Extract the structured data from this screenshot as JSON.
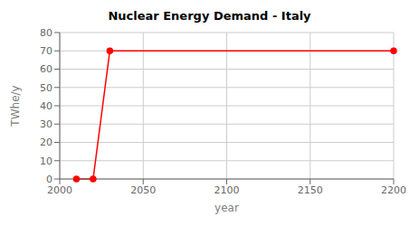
{
  "chart_data": {
    "type": "line",
    "title": "Nuclear Energy Demand - Italy",
    "xlabel": "year",
    "ylabel": "TWhe/y",
    "x": [
      2010,
      2020,
      2030,
      2200
    ],
    "series": [
      {
        "color": "#ff0000",
        "marker": "circle",
        "values": [
          0,
          0,
          70,
          70
        ]
      }
    ],
    "xlim": [
      2000,
      2200
    ],
    "ylim": [
      0,
      80
    ],
    "xticks": [
      2000,
      2050,
      2100,
      2150,
      2200
    ],
    "yticks": [
      0,
      10,
      20,
      30,
      40,
      50,
      60,
      70,
      80
    ],
    "grid": true
  }
}
